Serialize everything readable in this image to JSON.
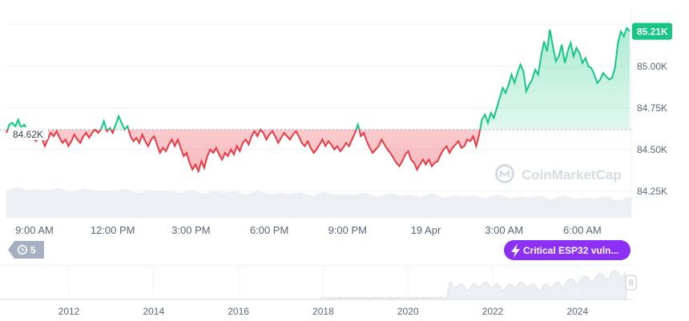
{
  "chart_data": {
    "type": "line",
    "x_ticks": [
      "9:00 AM",
      "12:00 PM",
      "3:00 PM",
      "6:00 PM",
      "9:00 PM",
      "19 Apr",
      "3:00 AM",
      "6:00 AM"
    ],
    "y_ticks": [
      "85.00K",
      "84.75K",
      "84.50K",
      "84.25K"
    ],
    "ylim": [
      84100,
      85350
    ],
    "reference_value": 84620,
    "reference_label": "84.62K",
    "current_label": "85.21K",
    "current_value": 85210,
    "values": [
      84600,
      84650,
      84660,
      84640,
      84680,
      84630,
      84650,
      84620,
      84560,
      84570,
      84550,
      84580,
      84570,
      84520,
      84560,
      84600,
      84580,
      84610,
      84570,
      84540,
      84560,
      84520,
      84550,
      84590,
      84560,
      84540,
      84580,
      84600,
      84570,
      84600,
      84620,
      84600,
      84620,
      84670,
      84610,
      84630,
      84600,
      84650,
      84700,
      84660,
      84620,
      84640,
      84580,
      84550,
      84570,
      84540,
      84590,
      84550,
      84520,
      84560,
      84580,
      84530,
      84480,
      84510,
      84490,
      84530,
      84560,
      84520,
      84560,
      84510,
      84460,
      84480,
      84420,
      84380,
      84410,
      84370,
      84430,
      84390,
      84460,
      84500,
      84480,
      84510,
      84470,
      84440,
      84480,
      84460,
      84500,
      84470,
      84520,
      84490,
      84540,
      84560,
      84530,
      84580,
      84610,
      84580,
      84620,
      84600,
      84560,
      84590,
      84610,
      84580,
      84540,
      84570,
      84600,
      84580,
      84560,
      84590,
      84610,
      84580,
      84540,
      84520,
      84550,
      84510,
      84480,
      84500,
      84530,
      84560,
      84520,
      84550,
      84530,
      84500,
      84520,
      84490,
      84510,
      84540,
      84520,
      84560,
      84600,
      84650,
      84580,
      84600,
      84550,
      84510,
      84480,
      84500,
      84520,
      84560,
      84530,
      84500,
      84480,
      84450,
      84420,
      84400,
      84430,
      84470,
      84490,
      84440,
      84420,
      84380,
      84410,
      84440,
      84410,
      84440,
      84400,
      84420,
      84430,
      84470,
      84500,
      84520,
      84480,
      84510,
      84530,
      84550,
      84510,
      84520,
      84560,
      84550,
      84580,
      84520,
      84590,
      84680,
      84710,
      84660,
      84720,
      84690,
      84750,
      84810,
      84870,
      84840,
      84890,
      84950,
      84900,
      84960,
      85010,
      84970,
      84850,
      84890,
      84920,
      84980,
      84950,
      85060,
      85150,
      85090,
      85220,
      85120,
      85030,
      85060,
      85130,
      85020,
      85090,
      85140,
      85060,
      85110,
      85080,
      85020,
      85050,
      85000,
      84990,
      84950,
      84900,
      84920,
      84960,
      84940,
      84920,
      84930,
      84990,
      85140,
      85210,
      85180,
      85230,
      85210
    ]
  },
  "mini_chart": {
    "year_ticks": [
      "2012",
      "2014",
      "2016",
      "2018",
      "2020",
      "2022",
      "2024"
    ]
  },
  "watermark": {
    "text": "CoinMarketCap"
  },
  "history_badge": {
    "count": "5"
  },
  "event_badge": {
    "text": "Critical ESP32 vuln..."
  },
  "colors": {
    "up": "#16c784",
    "down": "#ea3943",
    "event": "#8c30f5",
    "badge": "#a6b0c3"
  }
}
